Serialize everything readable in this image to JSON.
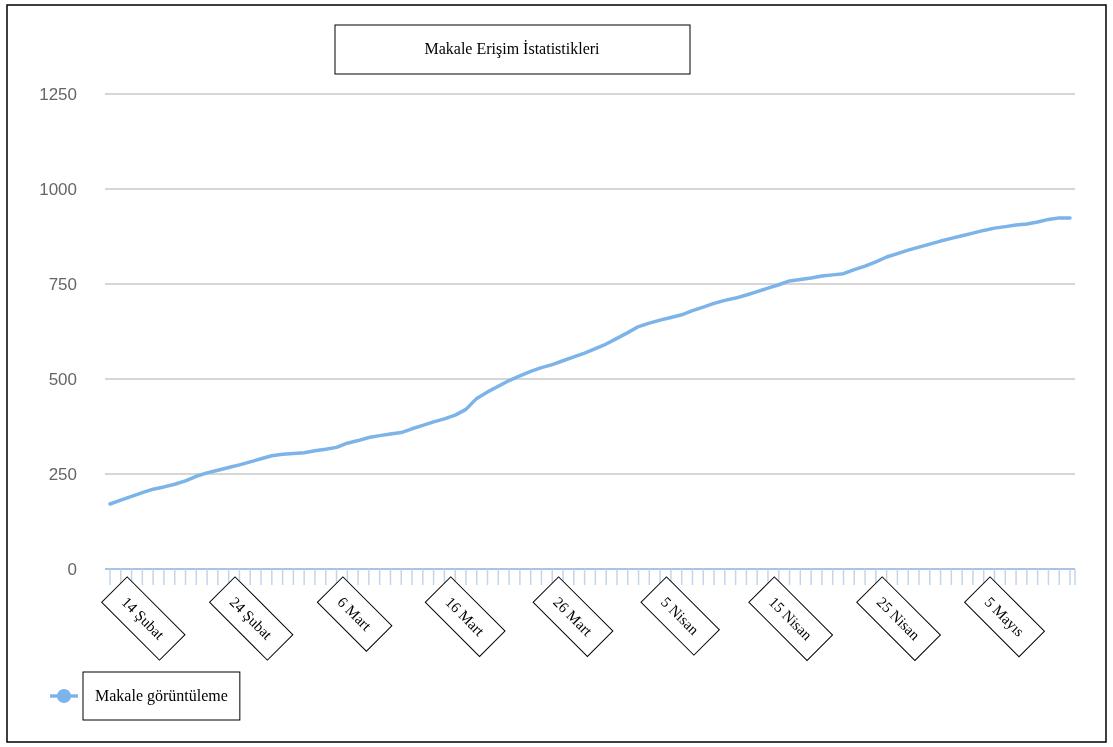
{
  "chart_data": {
    "type": "line",
    "title": "Makale Erişim İstatistikleri",
    "categories": [
      null,
      "14 Şubat",
      null,
      null,
      null,
      null,
      null,
      null,
      null,
      null,
      null,
      "24 Şubat",
      null,
      null,
      null,
      null,
      null,
      null,
      null,
      null,
      null,
      "6 Mart",
      null,
      null,
      null,
      null,
      null,
      null,
      null,
      null,
      null,
      "16 Mart",
      null,
      null,
      null,
      null,
      null,
      null,
      null,
      null,
      null,
      "26 Mart",
      null,
      null,
      null,
      null,
      null,
      null,
      null,
      null,
      null,
      "5 Nisan",
      null,
      null,
      null,
      null,
      null,
      null,
      null,
      null,
      null,
      "15 Nisan",
      null,
      null,
      null,
      null,
      null,
      null,
      null,
      null,
      null,
      "25 Nisan",
      null,
      null,
      null,
      null,
      null,
      null,
      null,
      null,
      null,
      "5 Mayıs",
      null,
      null,
      null,
      null,
      null,
      null,
      null,
      null
    ],
    "series": [
      {
        "name": "Makale görüntüleme",
        "color": "#7cb3e8",
        "values": [
          171,
          181,
          191,
          201,
          210,
          216,
          223,
          232,
          244,
          253,
          260,
          267,
          274,
          282,
          290,
          298,
          302,
          304,
          306,
          311,
          315,
          320,
          331,
          338,
          346,
          351,
          355,
          359,
          369,
          378,
          387,
          395,
          405,
          420,
          449,
          466,
          481,
          496,
          508,
          520,
          530,
          538,
          548,
          558,
          568,
          580,
          592,
          607,
          622,
          638,
          647,
          655,
          662,
          669,
          680,
          689,
          699,
          707,
          713,
          721,
          730,
          739,
          748,
          758,
          762,
          766,
          771,
          774,
          777,
          788,
          797,
          808,
          821,
          830,
          839,
          847,
          855,
          863,
          870,
          877,
          884,
          891,
          897,
          901,
          905,
          908,
          913,
          920,
          924,
          924
        ]
      }
    ],
    "ylim": [
      0,
      1250
    ],
    "yticks": [
      0,
      250,
      500,
      750,
      1000,
      1250
    ],
    "grid": "y",
    "legend": "bottom left"
  }
}
